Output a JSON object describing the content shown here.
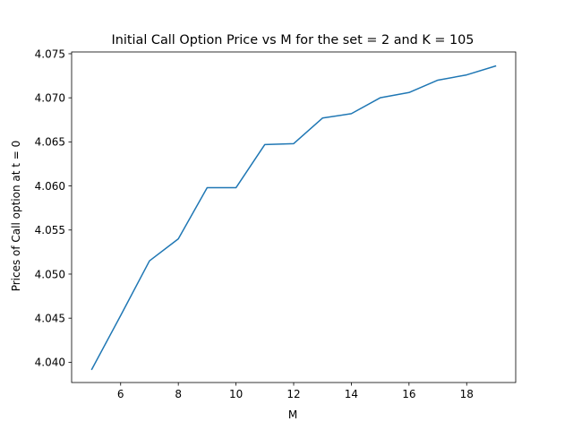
{
  "chart_data": {
    "type": "line",
    "title": "Initial Call Option Price vs M for the set = 2 and K = 105",
    "xlabel": "M",
    "ylabel": "Prices of Call option at t = 0",
    "xlim": [
      4.3,
      19.7
    ],
    "ylim": [
      4.0377,
      4.0752
    ],
    "xticks": [
      6,
      8,
      10,
      12,
      14,
      16,
      18
    ],
    "yticks": [
      4.04,
      4.045,
      4.05,
      4.055,
      4.06,
      4.065,
      4.07,
      4.075
    ],
    "ytick_labels": [
      "4.040",
      "4.045",
      "4.050",
      "4.055",
      "4.060",
      "4.065",
      "4.070",
      "4.075"
    ],
    "grid": false,
    "series": [
      {
        "color": "#1f77b4",
        "x": [
          5,
          6,
          7,
          8,
          9,
          10,
          11,
          12,
          13,
          14,
          15,
          16,
          17,
          18,
          19
        ],
        "y": [
          4.0392,
          4.0453,
          4.0515,
          4.054,
          4.0598,
          4.0598,
          4.0647,
          4.0648,
          4.0677,
          4.0682,
          4.07,
          4.0706,
          4.072,
          4.0726,
          4.0736
        ]
      }
    ]
  }
}
